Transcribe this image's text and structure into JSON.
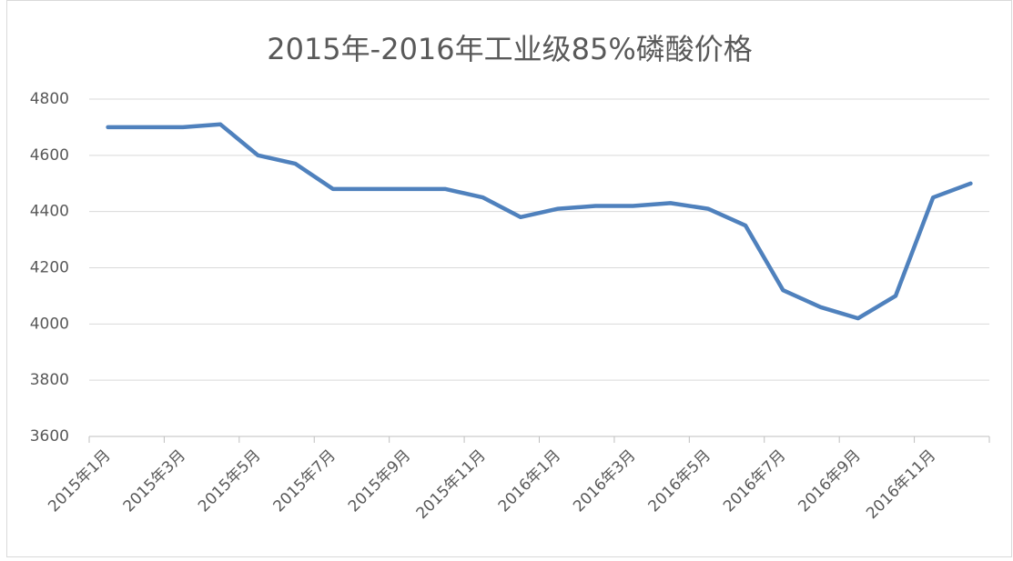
{
  "chart_data": {
    "type": "line",
    "title": "2015年-2016年工业级85%磷酸价格",
    "categories": [
      "2015年1月",
      null,
      "2015年3月",
      null,
      "2015年5月",
      null,
      "2015年7月",
      null,
      "2015年9月",
      null,
      "2015年11月",
      null,
      "2016年1月",
      null,
      "2016年3月",
      null,
      "2016年5月",
      null,
      "2016年7月",
      null,
      "2016年9月",
      null,
      "2016年11月",
      null
    ],
    "series": [
      {
        "name": "工业级85%磷酸价格",
        "color": "#4f81bd",
        "values": [
          4700,
          4700,
          4700,
          4710,
          4600,
          4570,
          4480,
          4480,
          4480,
          4480,
          4450,
          4380,
          4410,
          4420,
          4420,
          4430,
          4410,
          4350,
          4120,
          4060,
          4020,
          4100,
          4450,
          4500
        ]
      }
    ],
    "ylim": [
      3600,
      4800
    ],
    "yticks": [
      3600,
      3800,
      4000,
      4200,
      4400,
      4600,
      4800
    ],
    "grid": true
  }
}
